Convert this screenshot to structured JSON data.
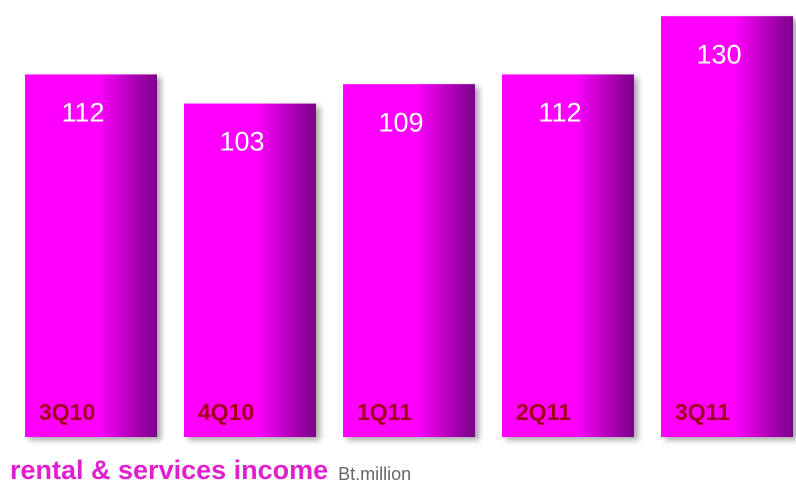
{
  "chart_data": {
    "type": "bar",
    "title": "rental & services income",
    "y_label": "Bt.million",
    "categories": [
      "3Q10",
      "4Q10",
      "1Q11",
      "2Q11",
      "3Q11"
    ],
    "values": [
      112,
      103,
      109,
      112,
      130
    ],
    "color": "#ff00ff",
    "ylim": [
      0,
      135
    ]
  }
}
